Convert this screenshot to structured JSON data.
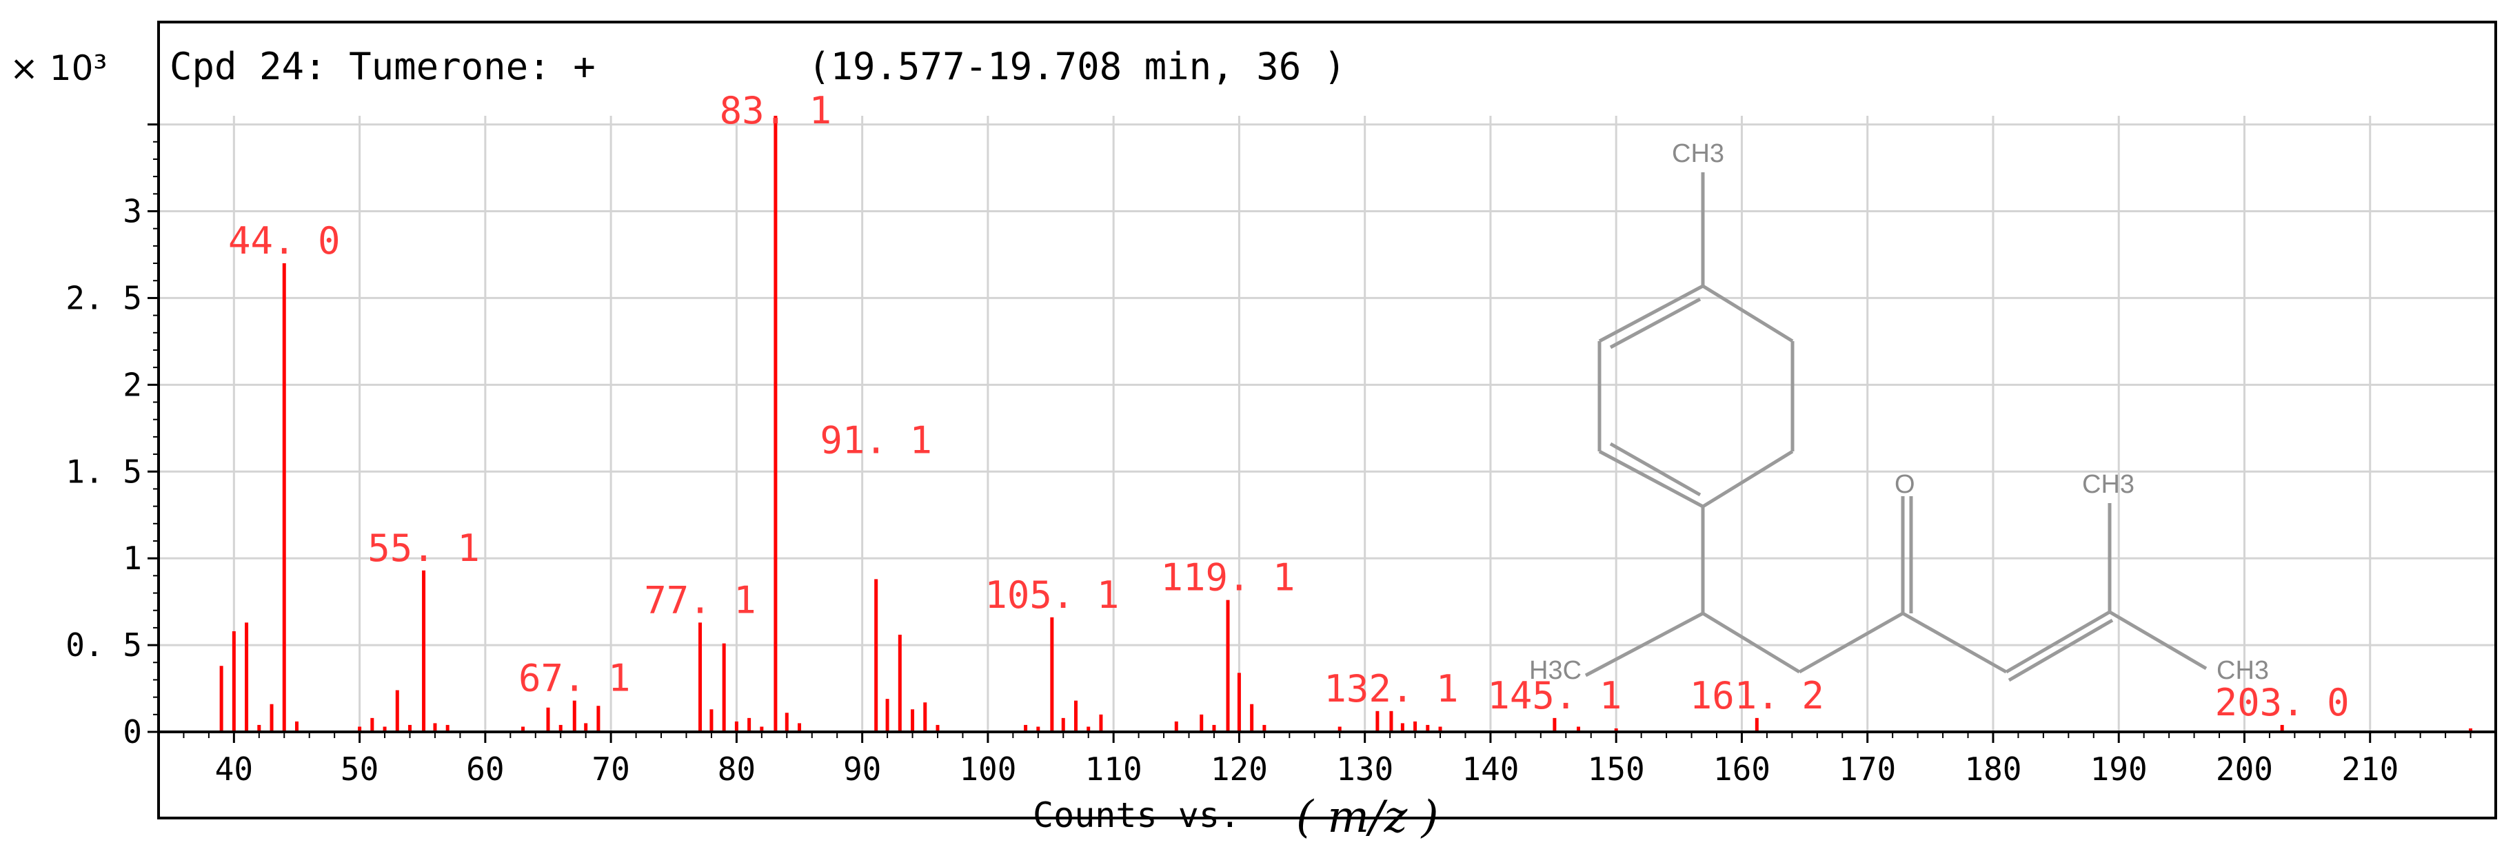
{
  "chart_data": {
    "type": "bar",
    "title": "Cpd 24: Tumerone: +",
    "subtitle": "(19.577-19.708 min, 36 )",
    "y_multiplier": "× 10³",
    "xlabel_prefix": "Counts vs.",
    "xlabel_unit": "( m/z )",
    "xlim": [
      34,
      220
    ],
    "ylim": [
      0,
      3.55
    ],
    "grid": true,
    "colors": {
      "bars": "#ff0000",
      "peak_labels": "#ff3b3b",
      "axis": "#000000",
      "grid": "#d4d4d4",
      "structure": "#9a9a9a"
    },
    "x_ticks": [
      40,
      50,
      60,
      70,
      80,
      90,
      100,
      110,
      120,
      130,
      140,
      150,
      160,
      170,
      180,
      190,
      200,
      210
    ],
    "x_tick_labels": [
      "40",
      "50",
      "60",
      "70",
      "80",
      "90",
      "100",
      "110",
      "120",
      "130",
      "140",
      "150",
      "160",
      "170",
      "180",
      "190",
      "200",
      "210"
    ],
    "y_ticks": [
      0,
      0.5,
      1,
      1.5,
      2,
      2.5,
      3
    ],
    "y_tick_labels": [
      "0",
      "0. 5",
      "1",
      "1. 5",
      "2",
      "2. 5",
      "3"
    ],
    "peaks": [
      {
        "mz": 39.0,
        "value": 0.38
      },
      {
        "mz": 40.0,
        "value": 0.58
      },
      {
        "mz": 41.0,
        "value": 0.63
      },
      {
        "mz": 42.0,
        "value": 0.04
      },
      {
        "mz": 43.0,
        "value": 0.16
      },
      {
        "mz": 44.0,
        "value": 2.7
      },
      {
        "mz": 45.0,
        "value": 0.06
      },
      {
        "mz": 50.0,
        "value": 0.03
      },
      {
        "mz": 51.0,
        "value": 0.08
      },
      {
        "mz": 52.0,
        "value": 0.03
      },
      {
        "mz": 53.0,
        "value": 0.24
      },
      {
        "mz": 54.0,
        "value": 0.04
      },
      {
        "mz": 55.1,
        "value": 0.93
      },
      {
        "mz": 56.0,
        "value": 0.05
      },
      {
        "mz": 57.0,
        "value": 0.04
      },
      {
        "mz": 63.0,
        "value": 0.03
      },
      {
        "mz": 65.0,
        "value": 0.14
      },
      {
        "mz": 66.0,
        "value": 0.04
      },
      {
        "mz": 67.1,
        "value": 0.18
      },
      {
        "mz": 68.0,
        "value": 0.05
      },
      {
        "mz": 69.0,
        "value": 0.15
      },
      {
        "mz": 77.1,
        "value": 0.63
      },
      {
        "mz": 78.0,
        "value": 0.13
      },
      {
        "mz": 79.0,
        "value": 0.51
      },
      {
        "mz": 80.0,
        "value": 0.06
      },
      {
        "mz": 81.0,
        "value": 0.08
      },
      {
        "mz": 82.0,
        "value": 0.03
      },
      {
        "mz": 83.1,
        "value": 3.55
      },
      {
        "mz": 84.0,
        "value": 0.11
      },
      {
        "mz": 85.0,
        "value": 0.05
      },
      {
        "mz": 91.1,
        "value": 0.88
      },
      {
        "mz": 92.0,
        "value": 0.19
      },
      {
        "mz": 93.0,
        "value": 0.56
      },
      {
        "mz": 94.0,
        "value": 0.13
      },
      {
        "mz": 95.0,
        "value": 0.17
      },
      {
        "mz": 96.0,
        "value": 0.04
      },
      {
        "mz": 103.0,
        "value": 0.04
      },
      {
        "mz": 104.0,
        "value": 0.03
      },
      {
        "mz": 105.1,
        "value": 0.66
      },
      {
        "mz": 106.0,
        "value": 0.08
      },
      {
        "mz": 107.0,
        "value": 0.18
      },
      {
        "mz": 108.0,
        "value": 0.03
      },
      {
        "mz": 109.0,
        "value": 0.1
      },
      {
        "mz": 115.0,
        "value": 0.06
      },
      {
        "mz": 117.0,
        "value": 0.1
      },
      {
        "mz": 118.0,
        "value": 0.04
      },
      {
        "mz": 119.1,
        "value": 0.76
      },
      {
        "mz": 120.0,
        "value": 0.34
      },
      {
        "mz": 121.0,
        "value": 0.16
      },
      {
        "mz": 122.0,
        "value": 0.04
      },
      {
        "mz": 128.0,
        "value": 0.03
      },
      {
        "mz": 131.0,
        "value": 0.12
      },
      {
        "mz": 132.1,
        "value": 0.12
      },
      {
        "mz": 133.0,
        "value": 0.05
      },
      {
        "mz": 134.0,
        "value": 0.06
      },
      {
        "mz": 135.0,
        "value": 0.04
      },
      {
        "mz": 136.0,
        "value": 0.03
      },
      {
        "mz": 145.1,
        "value": 0.08
      },
      {
        "mz": 147.0,
        "value": 0.03
      },
      {
        "mz": 150.0,
        "value": 0.02
      },
      {
        "mz": 161.2,
        "value": 0.08
      },
      {
        "mz": 203.0,
        "value": 0.04
      },
      {
        "mz": 218.0,
        "value": 0.02
      }
    ],
    "peak_labels": [
      {
        "text": "44. 0",
        "mz": 44.0,
        "value": 2.7
      },
      {
        "text": "55. 1",
        "mz": 55.1,
        "value": 0.93
      },
      {
        "text": "67. 1",
        "mz": 67.1,
        "value": 0.18
      },
      {
        "text": "77. 1",
        "mz": 77.1,
        "value": 0.63
      },
      {
        "text": "83. 1",
        "mz": 83.1,
        "value": 3.45
      },
      {
        "text": "91. 1",
        "mz": 91.1,
        "value": 1.55
      },
      {
        "text": "105. 1",
        "mz": 105.1,
        "value": 0.66
      },
      {
        "text": "119. 1",
        "mz": 119.1,
        "value": 0.76
      },
      {
        "text": "132. 1",
        "mz": 132.1,
        "value": 0.12
      },
      {
        "text": "145. 1",
        "mz": 145.1,
        "value": 0.08
      },
      {
        "text": "161. 2",
        "mz": 161.2,
        "value": 0.08
      },
      {
        "text": "203. 0",
        "mz": 203.0,
        "value": 0.04
      }
    ]
  },
  "structure": {
    "atom_labels": [
      "CH3",
      "O",
      "CH3",
      "H3C",
      "CH3"
    ]
  }
}
